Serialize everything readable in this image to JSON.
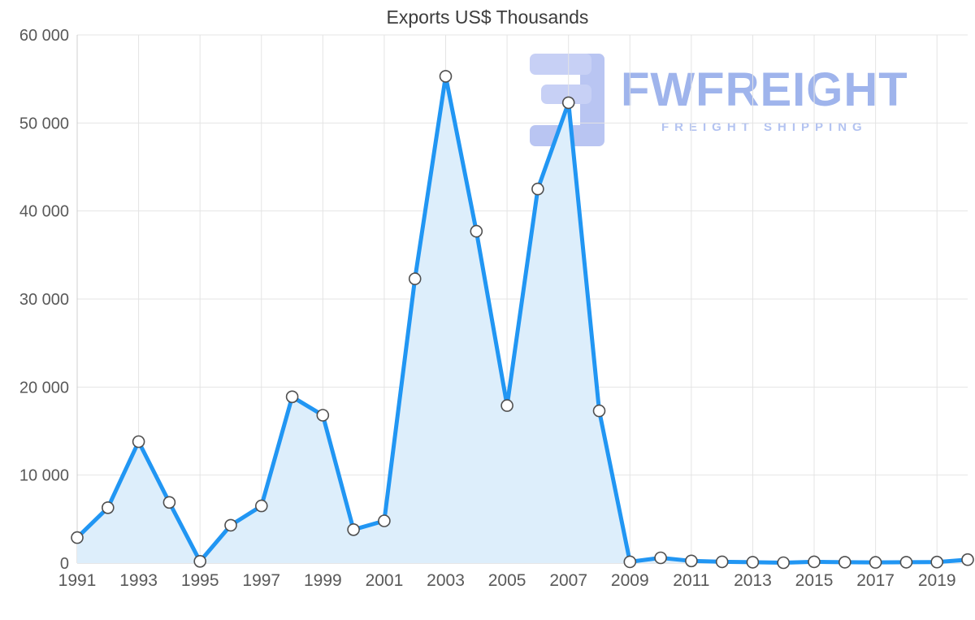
{
  "chart_data": {
    "type": "line",
    "title": "Exports US$ Thousands",
    "xlabel": "",
    "ylabel": "",
    "x": [
      1991,
      1992,
      1993,
      1994,
      1995,
      1996,
      1997,
      1998,
      1999,
      2000,
      2001,
      2002,
      2003,
      2004,
      2005,
      2006,
      2007,
      2008,
      2009,
      2010,
      2011,
      2012,
      2013,
      2014,
      2015,
      2016,
      2017,
      2018,
      2019,
      2020
    ],
    "series": [
      {
        "name": "Exports US$ Thousands",
        "values": [
          2900,
          6300,
          13800,
          6900,
          200,
          4300,
          6500,
          18900,
          16800,
          3800,
          4800,
          32300,
          55300,
          37700,
          17900,
          42500,
          52300,
          17300,
          150,
          600,
          250,
          150,
          100,
          50,
          150,
          100,
          80,
          100,
          120,
          400
        ]
      }
    ],
    "ylim": [
      0,
      60000
    ],
    "grid": true,
    "legend": "none",
    "yticks": [
      {
        "value": 0,
        "label": "0"
      },
      {
        "value": 10000,
        "label": "10 000"
      },
      {
        "value": 20000,
        "label": "20 000"
      },
      {
        "value": 30000,
        "label": "30 000"
      },
      {
        "value": 40000,
        "label": "40 000"
      },
      {
        "value": 50000,
        "label": "50 000"
      },
      {
        "value": 60000,
        "label": "60 000"
      }
    ],
    "xticks": [
      {
        "value": 1991,
        "label": "1991"
      },
      {
        "value": 1993,
        "label": "1993"
      },
      {
        "value": 1995,
        "label": "1995"
      },
      {
        "value": 1997,
        "label": "1997"
      },
      {
        "value": 1999,
        "label": "1999"
      },
      {
        "value": 2001,
        "label": "2001"
      },
      {
        "value": 2003,
        "label": "2003"
      },
      {
        "value": 2005,
        "label": "2005"
      },
      {
        "value": 2007,
        "label": "2007"
      },
      {
        "value": 2009,
        "label": "2009"
      },
      {
        "value": 2011,
        "label": "2011"
      },
      {
        "value": 2013,
        "label": "2013"
      },
      {
        "value": 2015,
        "label": "2015"
      },
      {
        "value": 2017,
        "label": "2017"
      },
      {
        "value": 2019,
        "label": "2019"
      }
    ],
    "colors": {
      "line": "#2196f3",
      "fill": "#ddeefb",
      "grid": "#e4e4e4",
      "axis_line": "#cfcfcf",
      "axis_text": "#595959",
      "title_text": "#3c3c3c",
      "marker_fill": "#ffffff",
      "marker_stroke": "#4f4f4f"
    }
  },
  "watermark": {
    "brand": "FWFREIGHT",
    "tagline": "FREIGHT SHIPPING",
    "brand_color": "#9fb4ec",
    "tagline_color": "#b3c3f1",
    "logo_color": "#b9c5f2",
    "logo_color_light": "#c7d0f5"
  }
}
